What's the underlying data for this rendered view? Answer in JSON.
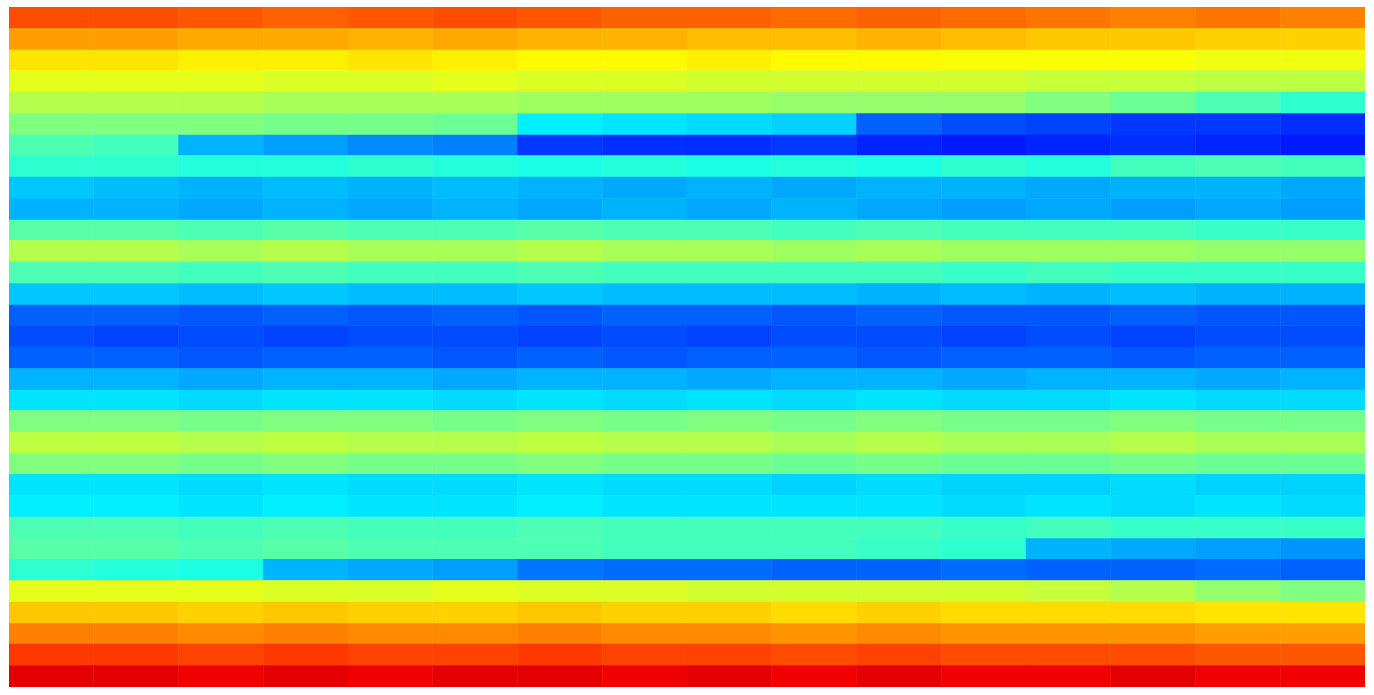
{
  "chart_data": {
    "type": "heatmap",
    "xlim": [
      0,
      16
    ],
    "ylim": [
      0,
      32
    ],
    "zlim": [
      0,
      1
    ],
    "tick_labels": false,
    "cells": [
      [
        0.8,
        0.8,
        0.79,
        0.78,
        0.79,
        0.8,
        0.79,
        0.78,
        0.78,
        0.77,
        0.78,
        0.77,
        0.76,
        0.75,
        0.76,
        0.75
      ],
      [
        0.72,
        0.72,
        0.71,
        0.71,
        0.7,
        0.71,
        0.7,
        0.7,
        0.69,
        0.69,
        0.7,
        0.69,
        0.68,
        0.68,
        0.67,
        0.67
      ],
      [
        0.65,
        0.65,
        0.64,
        0.64,
        0.65,
        0.64,
        0.63,
        0.63,
        0.64,
        0.63,
        0.63,
        0.62,
        0.62,
        0.62,
        0.61,
        0.61
      ],
      [
        0.6,
        0.6,
        0.6,
        0.59,
        0.59,
        0.6,
        0.59,
        0.59,
        0.58,
        0.58,
        0.58,
        0.58,
        0.57,
        0.57,
        0.56,
        0.56
      ],
      [
        0.55,
        0.55,
        0.55,
        0.54,
        0.54,
        0.54,
        0.53,
        0.53,
        0.53,
        0.52,
        0.52,
        0.52,
        0.5,
        0.48,
        0.45,
        0.42
      ],
      [
        0.5,
        0.5,
        0.5,
        0.49,
        0.49,
        0.48,
        0.36,
        0.35,
        0.34,
        0.33,
        0.22,
        0.2,
        0.19,
        0.18,
        0.18,
        0.17
      ],
      [
        0.45,
        0.44,
        0.3,
        0.28,
        0.26,
        0.25,
        0.18,
        0.17,
        0.17,
        0.18,
        0.16,
        0.15,
        0.16,
        0.17,
        0.16,
        0.15
      ],
      [
        0.42,
        0.42,
        0.41,
        0.41,
        0.42,
        0.41,
        0.4,
        0.41,
        0.4,
        0.41,
        0.4,
        0.42,
        0.41,
        0.44,
        0.45,
        0.44
      ],
      [
        0.32,
        0.31,
        0.3,
        0.31,
        0.3,
        0.31,
        0.3,
        0.29,
        0.3,
        0.29,
        0.3,
        0.3,
        0.29,
        0.3,
        0.3,
        0.29
      ],
      [
        0.3,
        0.3,
        0.29,
        0.3,
        0.29,
        0.3,
        0.29,
        0.3,
        0.29,
        0.3,
        0.29,
        0.28,
        0.29,
        0.28,
        0.29,
        0.28
      ],
      [
        0.46,
        0.46,
        0.45,
        0.46,
        0.45,
        0.45,
        0.46,
        0.45,
        0.45,
        0.44,
        0.45,
        0.44,
        0.44,
        0.44,
        0.43,
        0.43
      ],
      [
        0.55,
        0.55,
        0.54,
        0.55,
        0.54,
        0.54,
        0.55,
        0.54,
        0.54,
        0.53,
        0.54,
        0.53,
        0.53,
        0.53,
        0.52,
        0.52
      ],
      [
        0.45,
        0.45,
        0.44,
        0.45,
        0.44,
        0.44,
        0.45,
        0.44,
        0.44,
        0.44,
        0.44,
        0.43,
        0.44,
        0.43,
        0.43,
        0.43
      ],
      [
        0.32,
        0.32,
        0.31,
        0.32,
        0.31,
        0.31,
        0.32,
        0.31,
        0.31,
        0.31,
        0.3,
        0.31,
        0.3,
        0.31,
        0.3,
        0.3
      ],
      [
        0.22,
        0.22,
        0.21,
        0.22,
        0.21,
        0.22,
        0.21,
        0.22,
        0.22,
        0.21,
        0.22,
        0.21,
        0.21,
        0.22,
        0.21,
        0.21
      ],
      [
        0.2,
        0.19,
        0.2,
        0.19,
        0.2,
        0.2,
        0.19,
        0.2,
        0.19,
        0.2,
        0.2,
        0.19,
        0.2,
        0.19,
        0.2,
        0.2
      ],
      [
        0.22,
        0.22,
        0.21,
        0.22,
        0.22,
        0.21,
        0.22,
        0.21,
        0.22,
        0.22,
        0.21,
        0.22,
        0.22,
        0.21,
        0.22,
        0.22
      ],
      [
        0.3,
        0.3,
        0.29,
        0.3,
        0.3,
        0.29,
        0.3,
        0.3,
        0.29,
        0.3,
        0.3,
        0.29,
        0.3,
        0.3,
        0.29,
        0.3
      ],
      [
        0.35,
        0.35,
        0.34,
        0.35,
        0.35,
        0.34,
        0.35,
        0.34,
        0.35,
        0.34,
        0.35,
        0.34,
        0.34,
        0.35,
        0.34,
        0.34
      ],
      [
        0.5,
        0.5,
        0.49,
        0.5,
        0.5,
        0.49,
        0.5,
        0.49,
        0.5,
        0.49,
        0.5,
        0.49,
        0.49,
        0.5,
        0.49,
        0.49
      ],
      [
        0.56,
        0.56,
        0.55,
        0.56,
        0.55,
        0.55,
        0.56,
        0.55,
        0.55,
        0.54,
        0.55,
        0.54,
        0.54,
        0.55,
        0.54,
        0.54
      ],
      [
        0.5,
        0.5,
        0.49,
        0.5,
        0.49,
        0.49,
        0.5,
        0.49,
        0.49,
        0.48,
        0.49,
        0.48,
        0.48,
        0.49,
        0.48,
        0.48
      ],
      [
        0.35,
        0.35,
        0.34,
        0.35,
        0.34,
        0.34,
        0.35,
        0.34,
        0.34,
        0.33,
        0.34,
        0.33,
        0.33,
        0.34,
        0.33,
        0.33
      ],
      [
        0.36,
        0.36,
        0.35,
        0.36,
        0.35,
        0.35,
        0.36,
        0.35,
        0.35,
        0.35,
        0.35,
        0.34,
        0.35,
        0.34,
        0.35,
        0.34
      ],
      [
        0.45,
        0.45,
        0.44,
        0.45,
        0.44,
        0.44,
        0.45,
        0.44,
        0.44,
        0.44,
        0.44,
        0.43,
        0.44,
        0.43,
        0.43,
        0.43
      ],
      [
        0.46,
        0.46,
        0.45,
        0.46,
        0.45,
        0.45,
        0.45,
        0.44,
        0.44,
        0.44,
        0.43,
        0.42,
        0.3,
        0.29,
        0.28,
        0.27
      ],
      [
        0.42,
        0.41,
        0.4,
        0.3,
        0.29,
        0.28,
        0.24,
        0.23,
        0.23,
        0.22,
        0.22,
        0.23,
        0.22,
        0.22,
        0.23,
        0.22
      ],
      [
        0.6,
        0.6,
        0.6,
        0.59,
        0.59,
        0.6,
        0.59,
        0.59,
        0.58,
        0.58,
        0.58,
        0.58,
        0.57,
        0.55,
        0.52,
        0.5
      ],
      [
        0.68,
        0.68,
        0.67,
        0.68,
        0.67,
        0.67,
        0.68,
        0.67,
        0.67,
        0.66,
        0.67,
        0.66,
        0.66,
        0.66,
        0.65,
        0.65
      ],
      [
        0.75,
        0.75,
        0.74,
        0.75,
        0.74,
        0.74,
        0.75,
        0.74,
        0.74,
        0.73,
        0.74,
        0.73,
        0.73,
        0.73,
        0.72,
        0.72
      ],
      [
        0.82,
        0.82,
        0.81,
        0.82,
        0.81,
        0.81,
        0.82,
        0.81,
        0.81,
        0.8,
        0.81,
        0.8,
        0.8,
        0.8,
        0.79,
        0.79
      ],
      [
        0.9,
        0.9,
        0.89,
        0.9,
        0.89,
        0.9,
        0.9,
        0.89,
        0.9,
        0.89,
        0.9,
        0.89,
        0.89,
        0.9,
        0.89,
        0.89
      ]
    ]
  }
}
